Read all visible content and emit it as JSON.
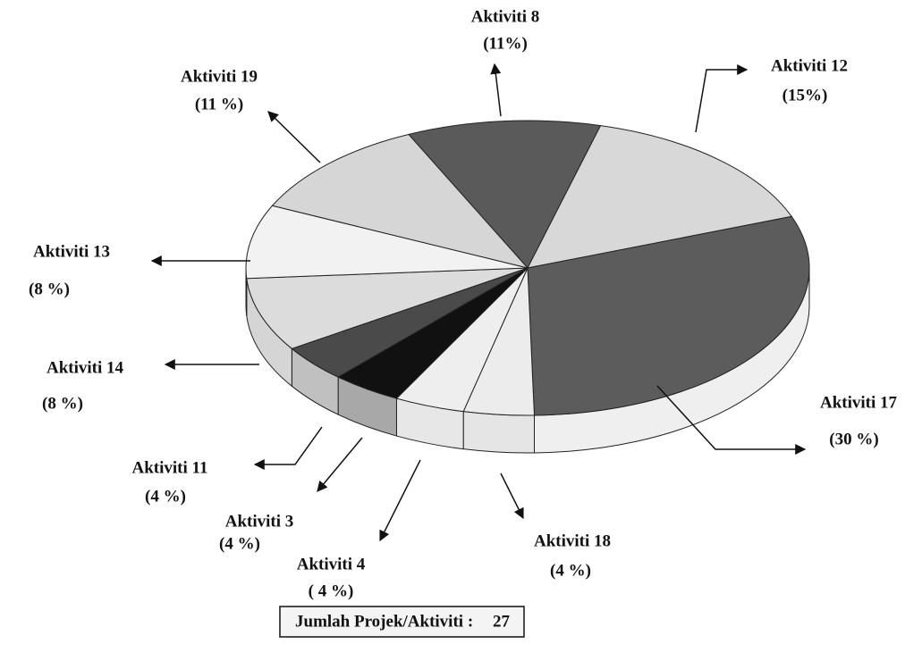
{
  "chart_data": {
    "type": "pie",
    "categories": [
      "Aktiviti 8",
      "Aktiviti 12",
      "Aktiviti 17",
      "Aktiviti 18",
      "Aktiviti 4",
      "Aktiviti 3",
      "Aktiviti 11",
      "Aktiviti 14",
      "Aktiviti 13",
      "Aktiviti 19"
    ],
    "values": [
      11,
      15,
      30,
      4,
      4,
      4,
      4,
      8,
      8,
      11
    ],
    "value_labels": [
      "(11%)",
      "(15%)",
      "(30 %)",
      "(4 %)",
      "( 4 %)",
      "(4 %)",
      "(4 %)",
      "(8 %)",
      "(8 %)",
      "(11 %)"
    ],
    "colors": [
      "#5a5a5a",
      "#d8d8d8",
      "#5c5c5c",
      "#ececec",
      "#eeeeee",
      "#111111",
      "#4a4a4a",
      "#dcdcdc",
      "#f2f2f2",
      "#d6d6d6"
    ],
    "total_label": "Jumlah Projek/Aktiviti :",
    "total": 27
  }
}
